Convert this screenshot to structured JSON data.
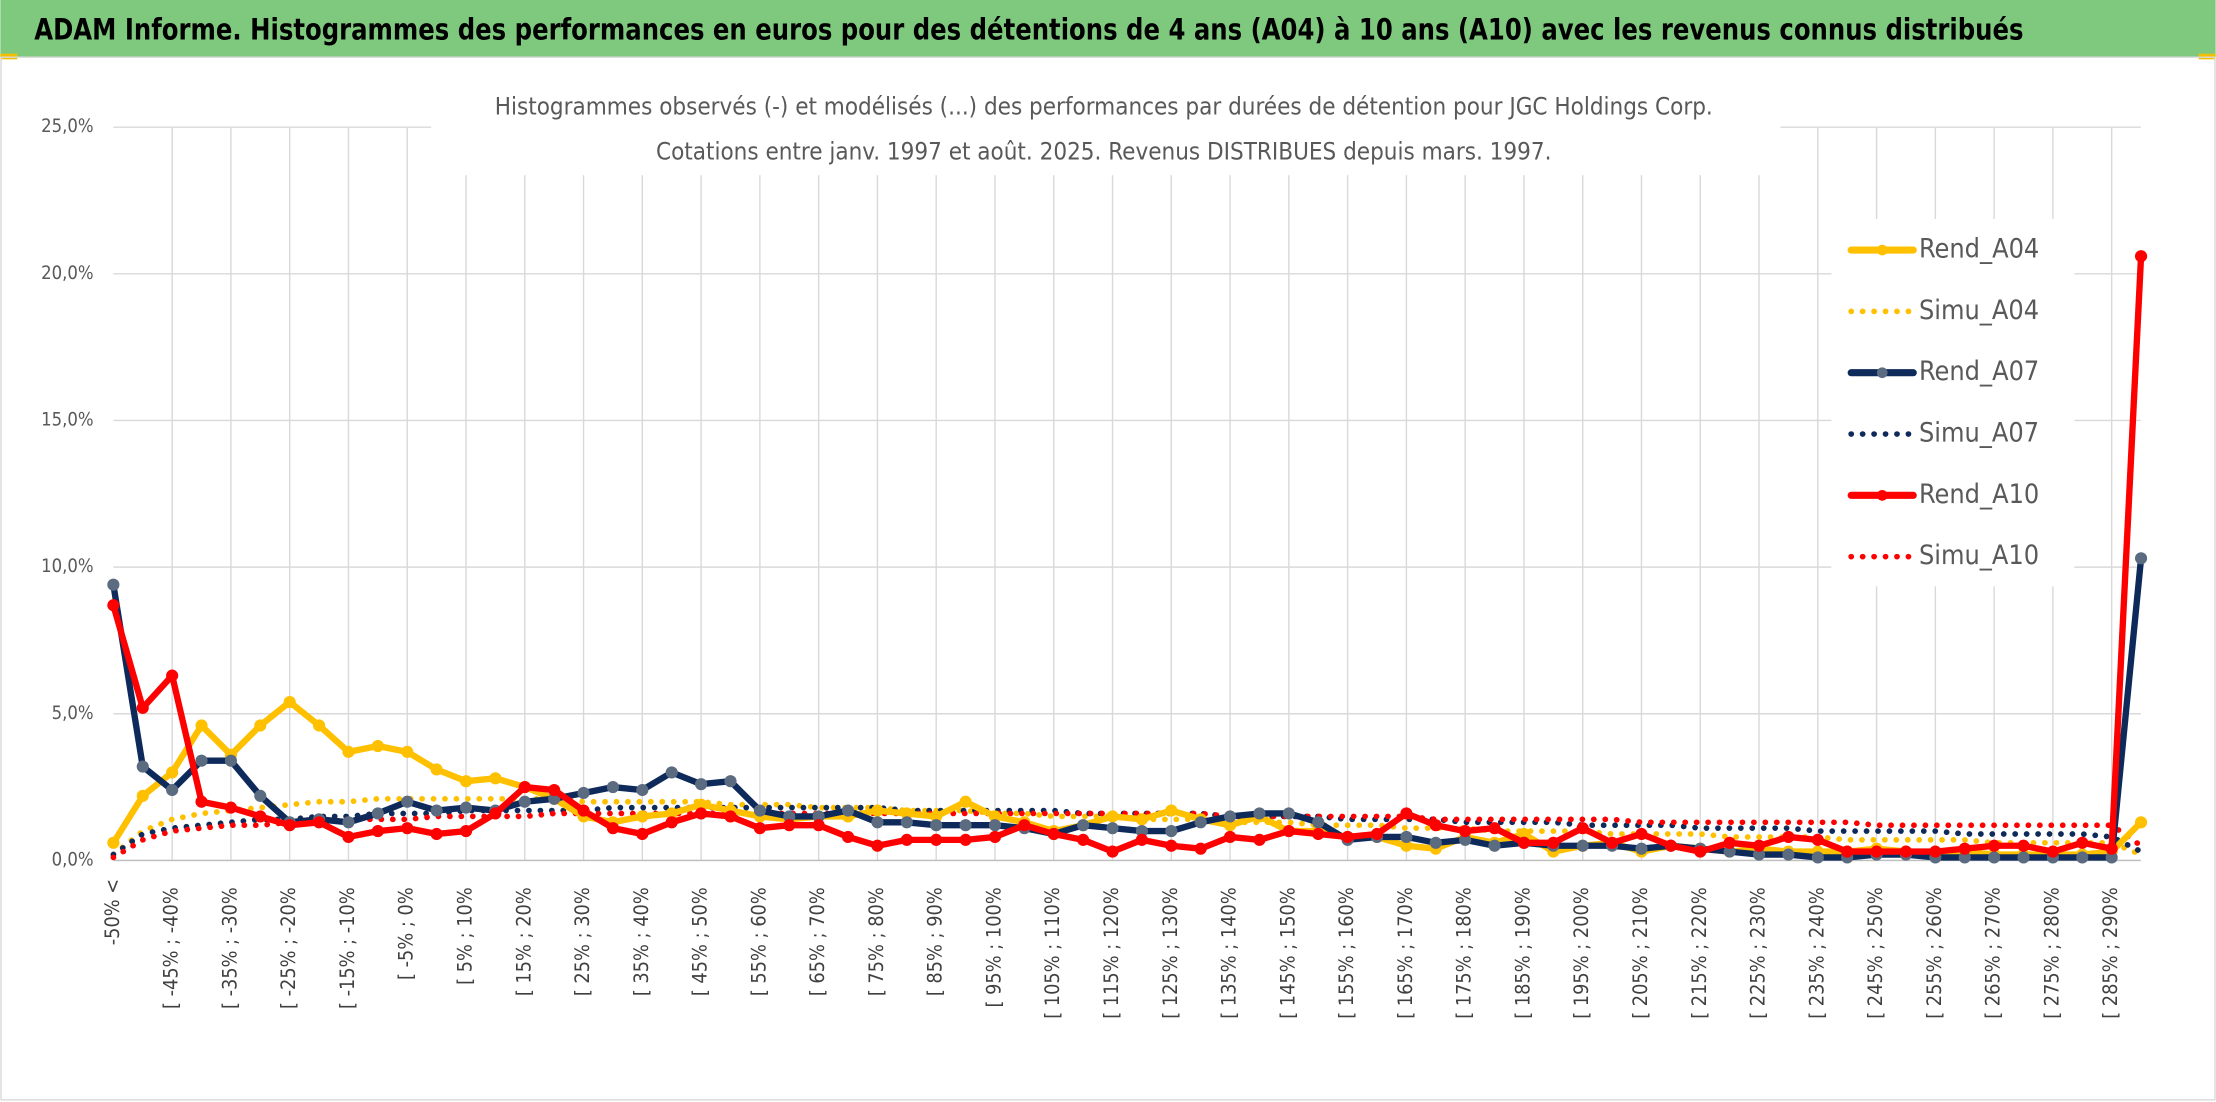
{
  "chart_data": {
    "type": "line",
    "title": "ADAM Informe. Histogrammes des performances en euros pour des détentions de 4 ans (A04) à 10 ans (A10) avec les revenus connus distribués",
    "subtitle": [
      "Histogrammes observés (-) et modélisés (...) des performances par durées de détention pour JGC Holdings Corp.",
      "Cotations entre janv. 1997 et août. 2025. Revenus DISTRIBUES depuis mars. 1997."
    ],
    "categories": [
      "-50% <",
      null,
      "[ -45% ; -40%",
      null,
      "[ -35% ; -30%",
      null,
      "[ -25% ; -20%",
      null,
      "[ -15% ; -10%",
      null,
      "[ -5% ; 0%",
      null,
      "[ 5% ; 10%",
      null,
      "[ 15% ; 20%",
      null,
      "[ 25% ; 30%",
      null,
      "[ 35% ; 40%",
      null,
      "[ 45% ; 50%",
      null,
      "[ 55% ; 60%",
      null,
      "[ 65% ; 70%",
      null,
      "[ 75% ; 80%",
      null,
      "[ 85% ; 90%",
      null,
      "[ 95% ; 100%",
      null,
      "[ 105% ; 110%",
      null,
      "[ 115% ; 120%",
      null,
      "[ 125% ; 130%",
      null,
      "[ 135% ; 140%",
      null,
      "[ 145% ; 150%",
      null,
      "[ 155% ; 160%",
      null,
      "[ 165% ; 170%",
      null,
      "[ 175% ; 180%",
      null,
      "[ 185% ; 190%",
      null,
      "[ 195% ; 200%",
      null,
      "[ 205% ; 210%",
      null,
      "[ 215% ; 220%",
      null,
      "[ 225% ; 230%",
      null,
      "[ 235% ; 240%",
      null,
      "[ 245% ; 250%",
      null,
      "[ 255% ; 260%",
      null,
      "[ 265% ; 270%",
      null,
      "[ 275% ; 280%",
      null,
      "[ 285% ; 290%",
      null
    ],
    "ylim": [
      0,
      25
    ],
    "yticks": [
      {
        "value": 0,
        "label": "0,0%"
      },
      {
        "value": 5,
        "label": "5,0%"
      },
      {
        "value": 10,
        "label": "10,0%"
      },
      {
        "value": 15,
        "label": "15,0%"
      },
      {
        "value": 20,
        "label": "20,0%"
      },
      {
        "value": 25,
        "label": "25,0%"
      }
    ],
    "grid": true,
    "legend": "right",
    "series": [
      {
        "name": "Rend_A04",
        "color": "#ffc000",
        "style": "solid",
        "markers": true,
        "values": [
          0.6,
          2.2,
          3.0,
          4.6,
          3.6,
          4.6,
          5.4,
          4.6,
          3.7,
          3.9,
          3.7,
          3.1,
          2.7,
          2.8,
          2.5,
          2.1,
          1.5,
          1.3,
          1.5,
          1.6,
          1.9,
          1.7,
          1.5,
          1.4,
          1.5,
          1.5,
          1.7,
          1.6,
          1.5,
          2.0,
          1.5,
          1.3,
          1.0,
          1.2,
          1.5,
          1.4,
          1.7,
          1.4,
          1.2,
          1.5,
          1.0,
          1.0,
          0.8,
          0.8,
          0.5,
          0.4,
          0.8,
          0.6,
          0.9,
          0.3,
          0.5,
          0.6,
          0.3,
          0.5,
          0.4,
          0.3,
          0.4,
          0.3,
          0.3,
          0.3,
          0.4,
          0.3,
          0.2,
          0.3,
          0.2,
          0.2,
          0.2,
          0.2,
          0.3,
          1.3
        ]
      },
      {
        "name": "Simu_A04",
        "color": "#ffc000",
        "style": "dotted",
        "markers": false,
        "values": [
          0.2,
          1.0,
          1.4,
          1.6,
          1.7,
          1.8,
          1.9,
          2.0,
          2.0,
          2.1,
          2.1,
          2.1,
          2.1,
          2.1,
          2.1,
          2.1,
          2.0,
          2.0,
          2.0,
          2.0,
          2.0,
          1.9,
          1.9,
          1.9,
          1.8,
          1.8,
          1.8,
          1.7,
          1.7,
          1.7,
          1.6,
          1.6,
          1.5,
          1.5,
          1.5,
          1.4,
          1.4,
          1.4,
          1.3,
          1.3,
          1.3,
          1.2,
          1.2,
          1.2,
          1.1,
          1.1,
          1.1,
          1.0,
          1.0,
          1.0,
          1.0,
          0.9,
          0.9,
          0.9,
          0.9,
          0.8,
          0.8,
          0.8,
          0.8,
          0.7,
          0.7,
          0.7,
          0.7,
          0.7,
          0.6,
          0.6,
          0.6,
          0.6,
          0.6,
          0.2
        ]
      },
      {
        "name": "Rend_A07",
        "color": "#0e2a5a",
        "marker_color": "#5b6b80",
        "style": "solid",
        "markers": true,
        "values": [
          9.4,
          3.2,
          2.4,
          3.4,
          3.4,
          2.2,
          1.3,
          1.4,
          1.3,
          1.6,
          2.0,
          1.7,
          1.8,
          1.7,
          2.0,
          2.1,
          2.3,
          2.5,
          2.4,
          3.0,
          2.6,
          2.7,
          1.7,
          1.5,
          1.5,
          1.7,
          1.3,
          1.3,
          1.2,
          1.2,
          1.2,
          1.1,
          0.9,
          1.2,
          1.1,
          1.0,
          1.0,
          1.3,
          1.5,
          1.6,
          1.6,
          1.3,
          0.7,
          0.8,
          0.8,
          0.6,
          0.7,
          0.5,
          0.6,
          0.5,
          0.5,
          0.5,
          0.4,
          0.5,
          0.4,
          0.3,
          0.2,
          0.2,
          0.1,
          0.1,
          0.2,
          0.2,
          0.1,
          0.1,
          0.1,
          0.1,
          0.1,
          0.1,
          0.1,
          10.3
        ]
      },
      {
        "name": "Simu_A07",
        "color": "#0e2a5a",
        "style": "dotted",
        "markers": false,
        "values": [
          0.2,
          0.9,
          1.1,
          1.2,
          1.3,
          1.4,
          1.4,
          1.5,
          1.5,
          1.6,
          1.6,
          1.6,
          1.7,
          1.7,
          1.7,
          1.7,
          1.7,
          1.8,
          1.8,
          1.8,
          1.8,
          1.8,
          1.8,
          1.8,
          1.8,
          1.8,
          1.8,
          1.7,
          1.7,
          1.7,
          1.7,
          1.7,
          1.7,
          1.6,
          1.6,
          1.6,
          1.6,
          1.6,
          1.5,
          1.5,
          1.5,
          1.5,
          1.4,
          1.4,
          1.4,
          1.4,
          1.3,
          1.3,
          1.3,
          1.3,
          1.2,
          1.2,
          1.2,
          1.2,
          1.1,
          1.1,
          1.1,
          1.1,
          1.0,
          1.0,
          1.0,
          1.0,
          1.0,
          0.9,
          0.9,
          0.9,
          0.9,
          0.9,
          0.8,
          0.3
        ]
      },
      {
        "name": "Rend_A10",
        "color": "#ff0000",
        "style": "solid",
        "markers": true,
        "values": [
          8.7,
          5.2,
          6.3,
          2.0,
          1.8,
          1.5,
          1.2,
          1.3,
          0.8,
          1.0,
          1.1,
          0.9,
          1.0,
          1.6,
          2.5,
          2.4,
          1.7,
          1.1,
          0.9,
          1.3,
          1.6,
          1.5,
          1.1,
          1.2,
          1.2,
          0.8,
          0.5,
          0.7,
          0.7,
          0.7,
          0.8,
          1.2,
          0.9,
          0.7,
          0.3,
          0.7,
          0.5,
          0.4,
          0.8,
          0.7,
          1.0,
          0.9,
          0.8,
          0.9,
          1.6,
          1.2,
          1.0,
          1.1,
          0.6,
          0.6,
          1.1,
          0.6,
          0.9,
          0.5,
          0.3,
          0.6,
          0.5,
          0.8,
          0.7,
          0.3,
          0.3,
          0.3,
          0.3,
          0.4,
          0.5,
          0.5,
          0.3,
          0.6,
          0.4,
          20.6
        ]
      },
      {
        "name": "Simu_A10",
        "color": "#ff0000",
        "style": "dotted",
        "markers": false,
        "values": [
          0.1,
          0.7,
          1.0,
          1.1,
          1.2,
          1.2,
          1.3,
          1.3,
          1.4,
          1.4,
          1.4,
          1.5,
          1.5,
          1.5,
          1.5,
          1.6,
          1.6,
          1.6,
          1.6,
          1.6,
          1.6,
          1.6,
          1.6,
          1.6,
          1.6,
          1.6,
          1.6,
          1.6,
          1.6,
          1.6,
          1.6,
          1.6,
          1.6,
          1.6,
          1.6,
          1.6,
          1.6,
          1.6,
          1.5,
          1.5,
          1.5,
          1.5,
          1.5,
          1.5,
          1.5,
          1.4,
          1.4,
          1.4,
          1.4,
          1.4,
          1.4,
          1.4,
          1.3,
          1.3,
          1.3,
          1.3,
          1.3,
          1.3,
          1.3,
          1.3,
          1.2,
          1.2,
          1.2,
          1.2,
          1.2,
          1.2,
          1.2,
          1.2,
          1.2,
          0.5
        ]
      }
    ]
  }
}
